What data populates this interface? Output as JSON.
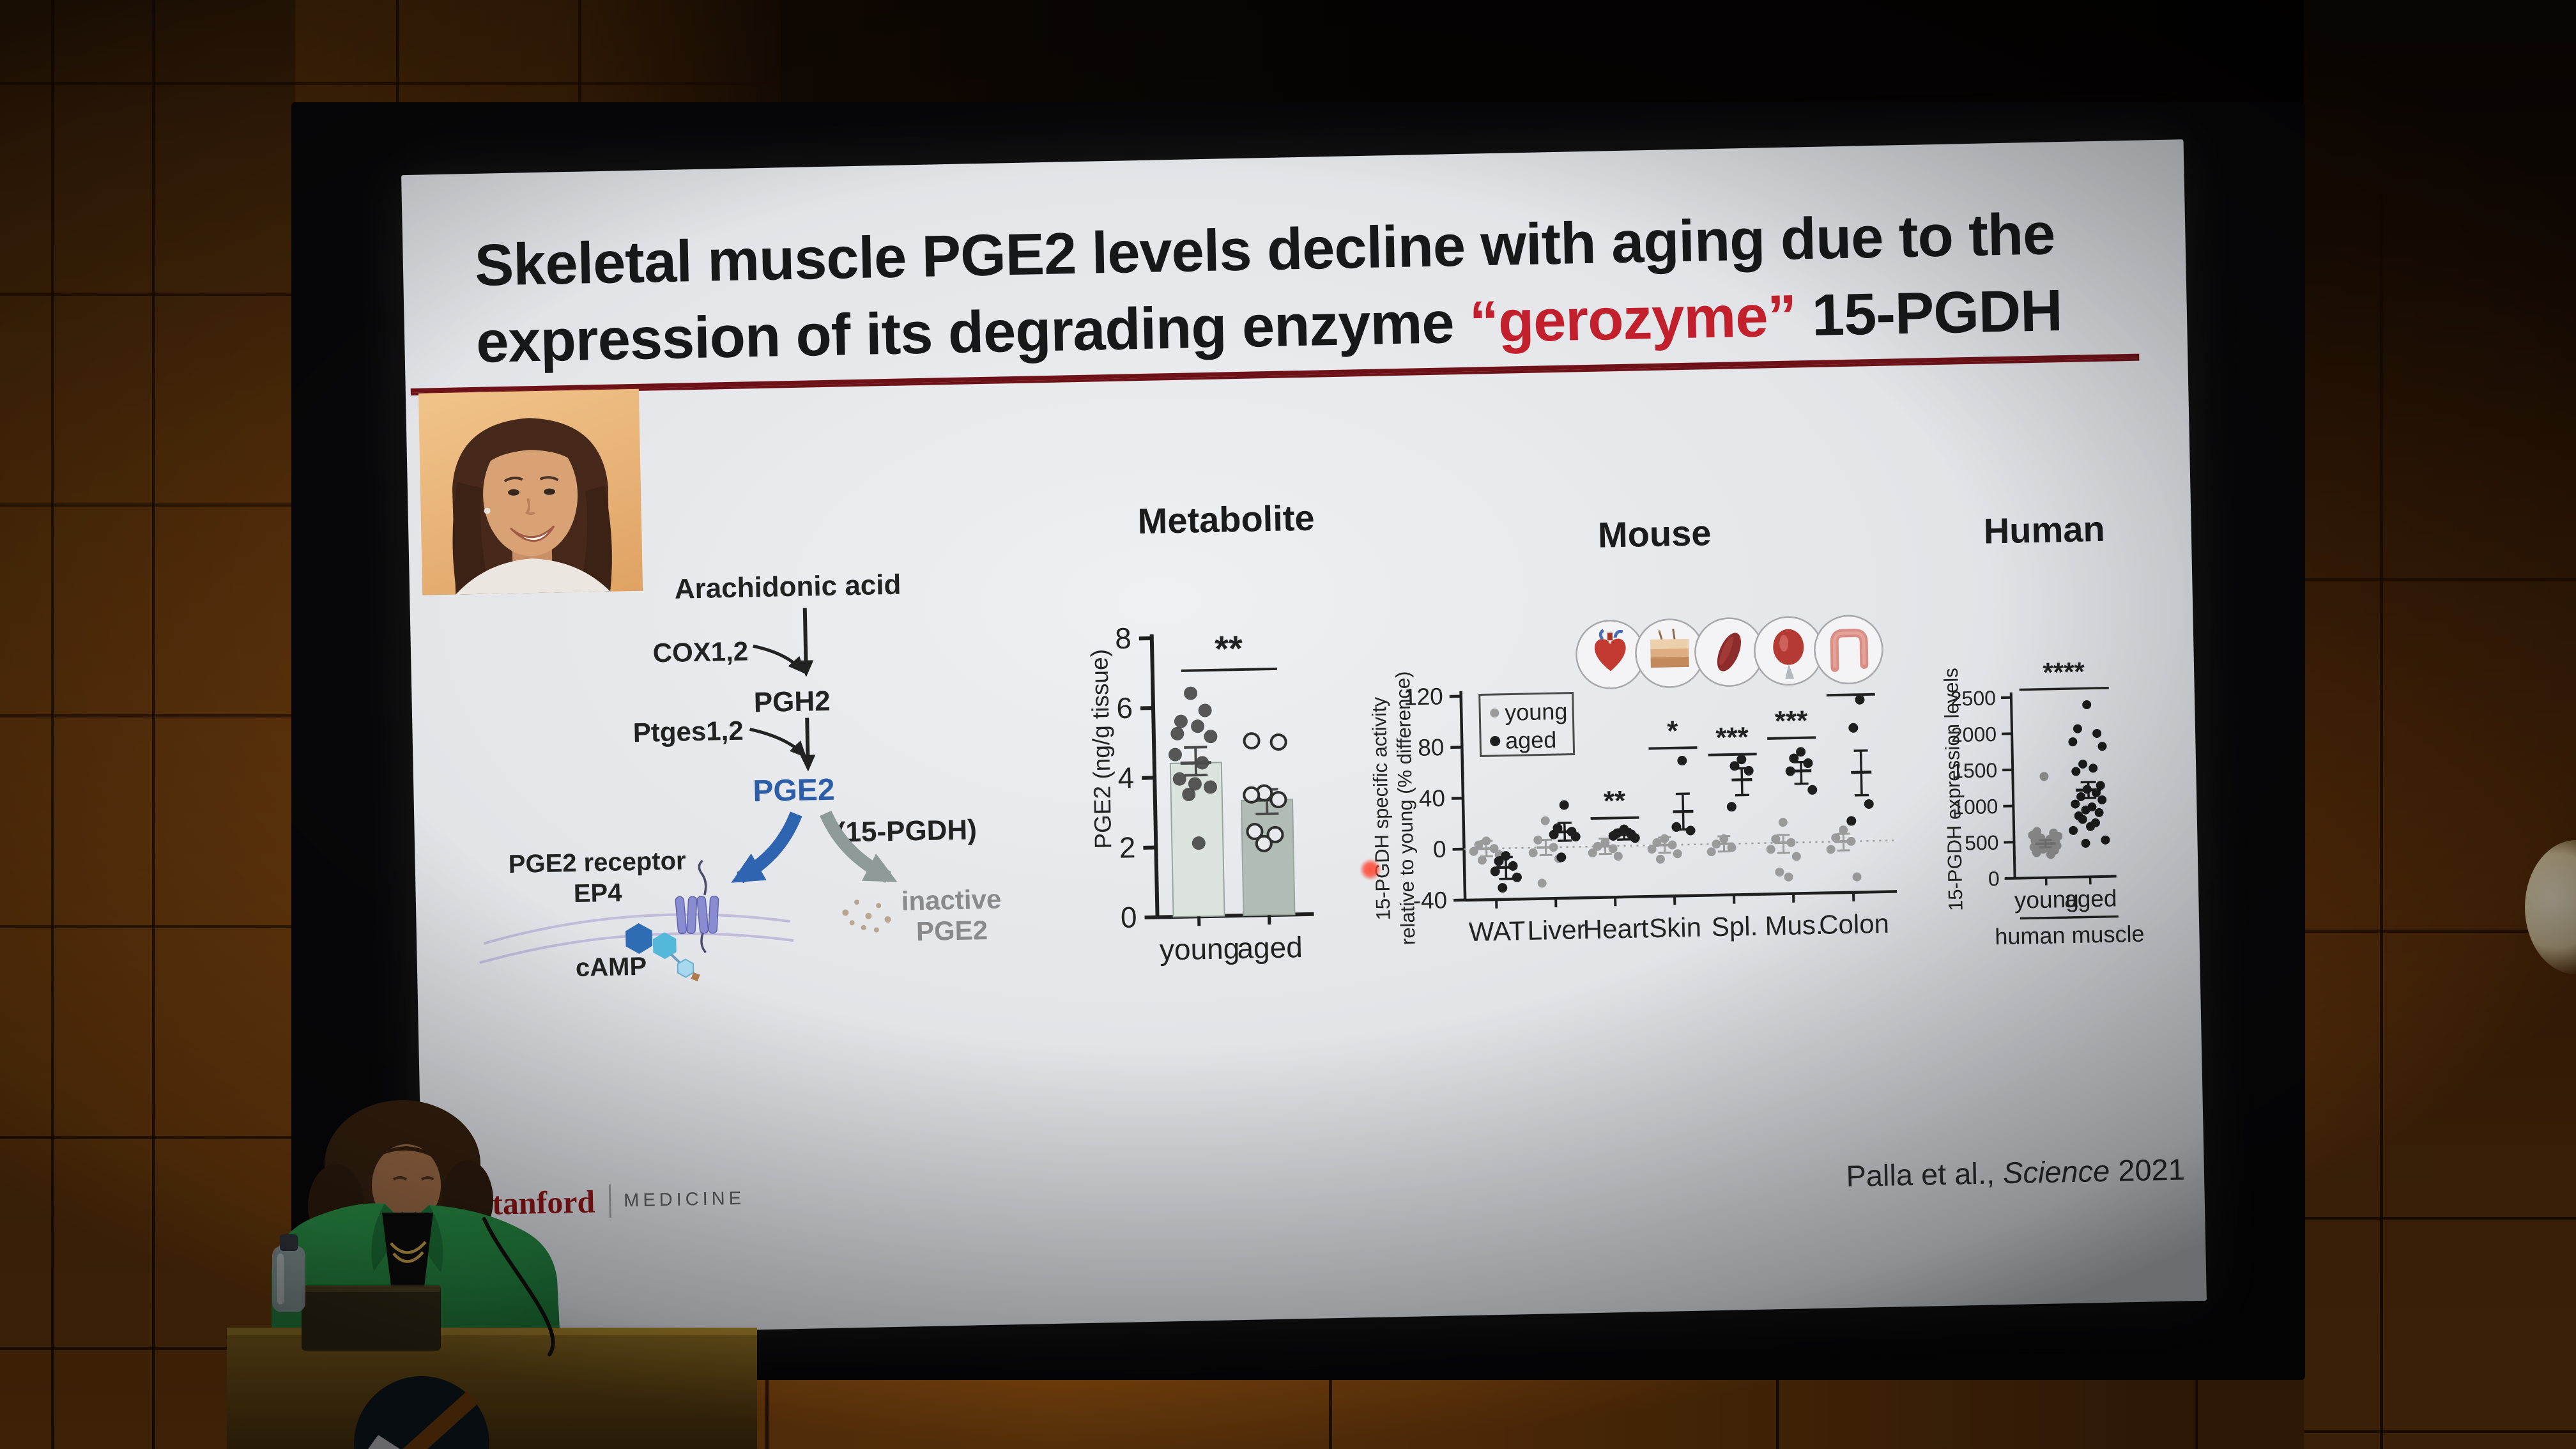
{
  "scene": {
    "setting": "conference lecture hall with wood panel walls, projected slide, speaker at podium",
    "colors": {
      "wood_wall": "#6b3b0c",
      "screen_bezel": "#070709",
      "slide_bg": "#e4e6ea"
    }
  },
  "slide": {
    "title": {
      "line1": "Skeletal muscle PGE2 levels decline with aging due to the",
      "line2_pre": "expression of its degrading enzyme ",
      "line2_highlight": "“gerozyme”",
      "line2_post": " 15-PGDH",
      "highlight_color": "#c1202c",
      "underline_color": "#6e1218"
    },
    "pathway": {
      "arachidonic": "Arachidonic acid",
      "cox": "COX1,2",
      "pgh2": "PGH2",
      "ptges": "Ptges1,2",
      "pge2": "PGE2",
      "pgdh": "(15-PGDH)",
      "receptor_line1": "PGE2 receptor",
      "receptor_line2": "EP4",
      "camp": "cAMP",
      "inactive_line1": "inactive",
      "inactive_line2": "PGE2",
      "pge2_color": "#2b5da8",
      "inactive_color": "#8a8a8c",
      "arrow_blue": "#2f64b0",
      "arrow_gray": "#8e9a99"
    },
    "footer": {
      "logo_university": "Stanford",
      "logo_division": "MEDICINE",
      "logo_color": "#8c1515",
      "citation_pre": "Palla et al., ",
      "citation_journal": "Science",
      "citation_post": " 2021"
    },
    "laser_dot_color": "#ff3c28"
  },
  "chart_data": {
    "metabolite": {
      "type": "bar",
      "title": "Metabolite",
      "ylabel": "PGE2 (ng/g tissue)",
      "ylim": [
        0,
        8
      ],
      "yticks": [
        0,
        2,
        4,
        6,
        8
      ],
      "categories": [
        "young",
        "aged"
      ],
      "bar_means": [
        4.4,
        3.3
      ],
      "bar_errors": [
        [
          4.05,
          4.85
        ],
        [
          2.9,
          3.6
        ]
      ],
      "points": {
        "young": [
          6.4,
          5.9,
          5.6,
          5.45,
          5.25,
          5.15,
          4.65,
          4.4,
          3.95,
          3.8,
          3.7,
          3.5,
          2.1
        ],
        "aged": [
          5.0,
          4.95,
          3.5,
          3.45,
          3.3,
          2.4,
          2.3,
          2.05
        ]
      },
      "significance": "**",
      "bar_colors": [
        "#dce3df",
        "#b2bcb6"
      ],
      "young_dot_color": "#4a4a4a",
      "aged_dot_stroke": "#2e2e2e"
    },
    "mouse": {
      "type": "scatter",
      "title": "Mouse",
      "ylabel_line1": "15-PGDH specific activity",
      "ylabel_line2": "relative to young (% difference)",
      "ylim": [
        -40,
        120
      ],
      "yticks": [
        -40,
        0,
        40,
        80,
        120
      ],
      "categories": [
        "WAT",
        "Liver",
        "Heart",
        "Skin",
        "Spl.",
        "Mus.",
        "Colon"
      ],
      "legend": [
        "young",
        "aged"
      ],
      "organ_icons": [
        "heart",
        "skin",
        "spleen",
        "muscle",
        "colon"
      ],
      "young_points": [
        [
          6,
          3,
          0,
          -2,
          -5,
          -9
        ],
        [
          21,
          6,
          0,
          -4,
          -9,
          -28
        ],
        [
          3,
          0,
          -2,
          -5,
          -8
        ],
        [
          5,
          2,
          0,
          -3,
          -7,
          -11
        ],
        [
          4,
          0,
          -3,
          -6
        ],
        [
          16,
          3,
          0,
          -5,
          -11,
          -23,
          -27
        ],
        [
          9,
          3,
          0,
          -6,
          -28
        ]
      ],
      "aged_points": [
        [
          -6,
          -10,
          -14,
          -18,
          -23,
          -31
        ],
        [
          33,
          15,
          12,
          10,
          8,
          -8
        ],
        [
          13,
          10,
          9,
          8,
          6
        ],
        [
          66,
          14,
          11
        ],
        [
          66,
          61,
          57,
          29
        ],
        [
          71,
          66,
          62,
          56,
          41
        ],
        [
          111,
          89,
          29,
          16
        ]
      ],
      "young_mean": [
        0,
        0,
        0,
        0,
        0,
        0,
        0
      ],
      "young_err": [
        [
          -6,
          6
        ],
        [
          -6,
          6
        ],
        [
          -6,
          6
        ],
        [
          -6,
          6
        ],
        [
          -6,
          6
        ],
        [
          -8,
          6
        ],
        [
          -7,
          6
        ]
      ],
      "aged_mean": [
        -15,
        12,
        9,
        26,
        50,
        56,
        54
      ],
      "aged_err": [
        [
          -24,
          -7
        ],
        [
          5,
          19
        ],
        [
          5,
          13
        ],
        [
          12,
          40
        ],
        [
          38,
          59
        ],
        [
          46,
          63
        ],
        [
          36,
          71
        ]
      ],
      "significance": [
        "",
        "",
        "**",
        "*",
        "***",
        "***",
        "*"
      ],
      "significance_y": [
        0,
        0,
        22,
        76,
        70,
        82,
        115
      ],
      "young_color": "#9a9a9a",
      "aged_color": "#1e1e1e"
    },
    "human": {
      "type": "scatter",
      "title": "Human",
      "ylabel": "15-PGDH expression levels",
      "ylim": [
        0,
        2500
      ],
      "yticks": [
        0,
        500,
        1000,
        1500,
        2000,
        2500
      ],
      "categories": [
        "young",
        "aged"
      ],
      "group_label": "human muscle",
      "young_points": [
        1400,
        640,
        615,
        590,
        570,
        550,
        530,
        515,
        500,
        485,
        470,
        455,
        440,
        425,
        410,
        395,
        375,
        350,
        320
      ],
      "aged_points": [
        2380,
        2050,
        1980,
        1870,
        1800,
        1560,
        1500,
        1460,
        1260,
        1210,
        1160,
        1110,
        1060,
        1010,
        965,
        925,
        885,
        845,
        795,
        745,
        695,
        645,
        505,
        465
      ],
      "young_mean": 470,
      "young_err": [
        420,
        520
      ],
      "aged_mean": 1200,
      "aged_err": [
        1090,
        1310
      ],
      "significance": "****",
      "young_color": "#8f8f8f",
      "aged_color": "#1b1b1b"
    }
  }
}
